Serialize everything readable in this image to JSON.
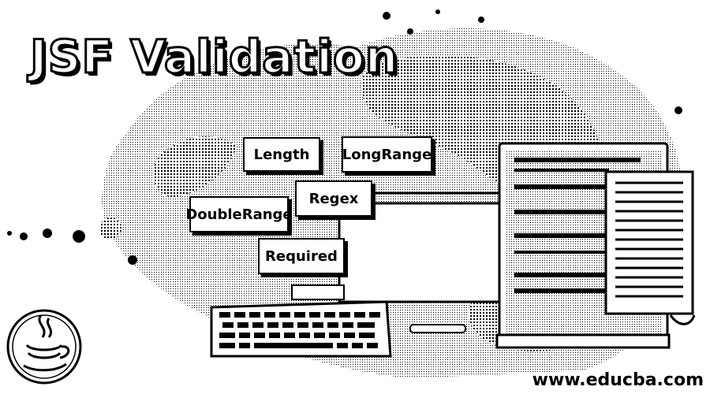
{
  "title": "JSF Validation",
  "validators": {
    "length": "Length",
    "long_range": "LongRange",
    "regex": "Regex",
    "double_range": "DoubleRange",
    "required": "Required"
  },
  "website": "www.educba.com",
  "icons": {
    "logo": "java-coffee-cup-icon",
    "keyboard": "keyboard-icon",
    "monitor": "monitor-icon",
    "document": "document-icon"
  },
  "colors": {
    "ink": "#000000",
    "paper": "#ffffff"
  }
}
